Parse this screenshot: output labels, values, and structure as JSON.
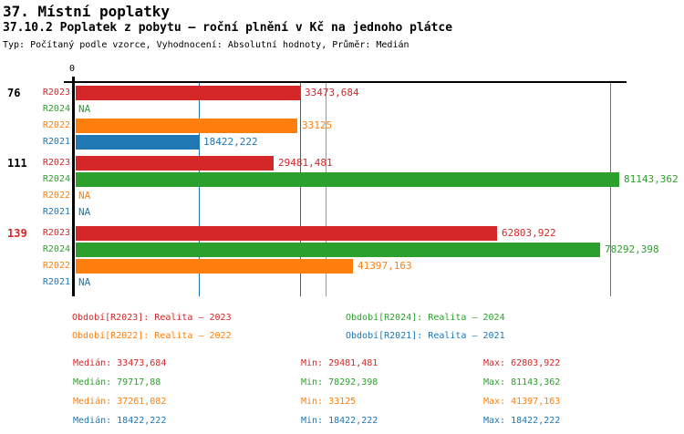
{
  "header": {
    "title": "37. Místní poplatky",
    "subtitle": "37.10.2 Poplatek z pobytu – roční plnění v Kč na jednoho plátce",
    "meta": "Typ: Počítaný podle vzorce, Vyhodnocení: Absolutní hodnoty, Průměr: Medián"
  },
  "colors": {
    "R2023": "#d62728",
    "R2024": "#2ca02c",
    "R2022": "#ff7f0e",
    "R2021": "#1f77b4",
    "axis": "#000000",
    "group_label_default": "#000000",
    "group_label_highlight": "#d62728"
  },
  "chart_data": {
    "type": "bar",
    "orientation": "horizontal",
    "x_axis": {
      "zero_label": "0",
      "min": 0,
      "max_visible_value": 81143.362,
      "grid": false
    },
    "series_order": [
      "R2023",
      "R2024",
      "R2022",
      "R2021"
    ],
    "groups": [
      {
        "label": "76",
        "highlight": false,
        "bars": [
          {
            "series": "R2023",
            "value": 33473.684,
            "display": "33473,684"
          },
          {
            "series": "R2024",
            "value": null,
            "display": "NA"
          },
          {
            "series": "R2022",
            "value": 33125,
            "display": "33125"
          },
          {
            "series": "R2021",
            "value": 18422.222,
            "display": "18422,222"
          }
        ]
      },
      {
        "label": "111",
        "highlight": false,
        "bars": [
          {
            "series": "R2023",
            "value": 29481.481,
            "display": "29481,481"
          },
          {
            "series": "R2024",
            "value": 81143.362,
            "display": "81143,362"
          },
          {
            "series": "R2022",
            "value": null,
            "display": "NA"
          },
          {
            "series": "R2021",
            "value": null,
            "display": "NA"
          }
        ]
      },
      {
        "label": "139",
        "highlight": true,
        "bars": [
          {
            "series": "R2023",
            "value": 62803.922,
            "display": "62803,922"
          },
          {
            "series": "R2024",
            "value": 78292.398,
            "display": "78292,398"
          },
          {
            "series": "R2022",
            "value": 41397.163,
            "display": "41397,163"
          },
          {
            "series": "R2021",
            "value": null,
            "display": "NA"
          }
        ]
      }
    ],
    "median_lines": [
      {
        "series": "R2023",
        "value": 33473.684
      },
      {
        "series": "R2024",
        "value": 79717.88
      },
      {
        "series": "R2022",
        "value": 37261.082
      },
      {
        "series": "R2021",
        "value": 18422.222
      }
    ],
    "legend": [
      {
        "series": "R2023",
        "label": "Období[R2023]: Realita – 2023"
      },
      {
        "series": "R2024",
        "label": "Období[R2024]: Realita – 2024"
      },
      {
        "series": "R2022",
        "label": "Období[R2022]: Realita – 2022"
      },
      {
        "series": "R2021",
        "label": "Období[R2021]: Realita – 2021"
      }
    ],
    "stats": [
      {
        "series": "R2023",
        "median": 33473.684,
        "min": 29481.481,
        "max": 62803.922,
        "median_label": "Medián: 33473,684",
        "min_label": "Min: 29481,481",
        "max_label": "Max: 62803,922"
      },
      {
        "series": "R2024",
        "median": 79717.88,
        "min": 78292.398,
        "max": 81143.362,
        "median_label": "Medián: 79717,88",
        "min_label": "Min: 78292,398",
        "max_label": "Max: 81143,362"
      },
      {
        "series": "R2022",
        "median": 37261.082,
        "min": 33125,
        "max": 41397.163,
        "median_label": "Medián: 37261,082",
        "min_label": "Min: 33125",
        "max_label": "Max: 41397,163"
      },
      {
        "series": "R2021",
        "median": 18422.222,
        "min": 18422.222,
        "max": 18422.222,
        "median_label": "Medián: 18422,222",
        "min_label": "Min: 18422,222",
        "max_label": "Max: 18422,222"
      }
    ]
  }
}
